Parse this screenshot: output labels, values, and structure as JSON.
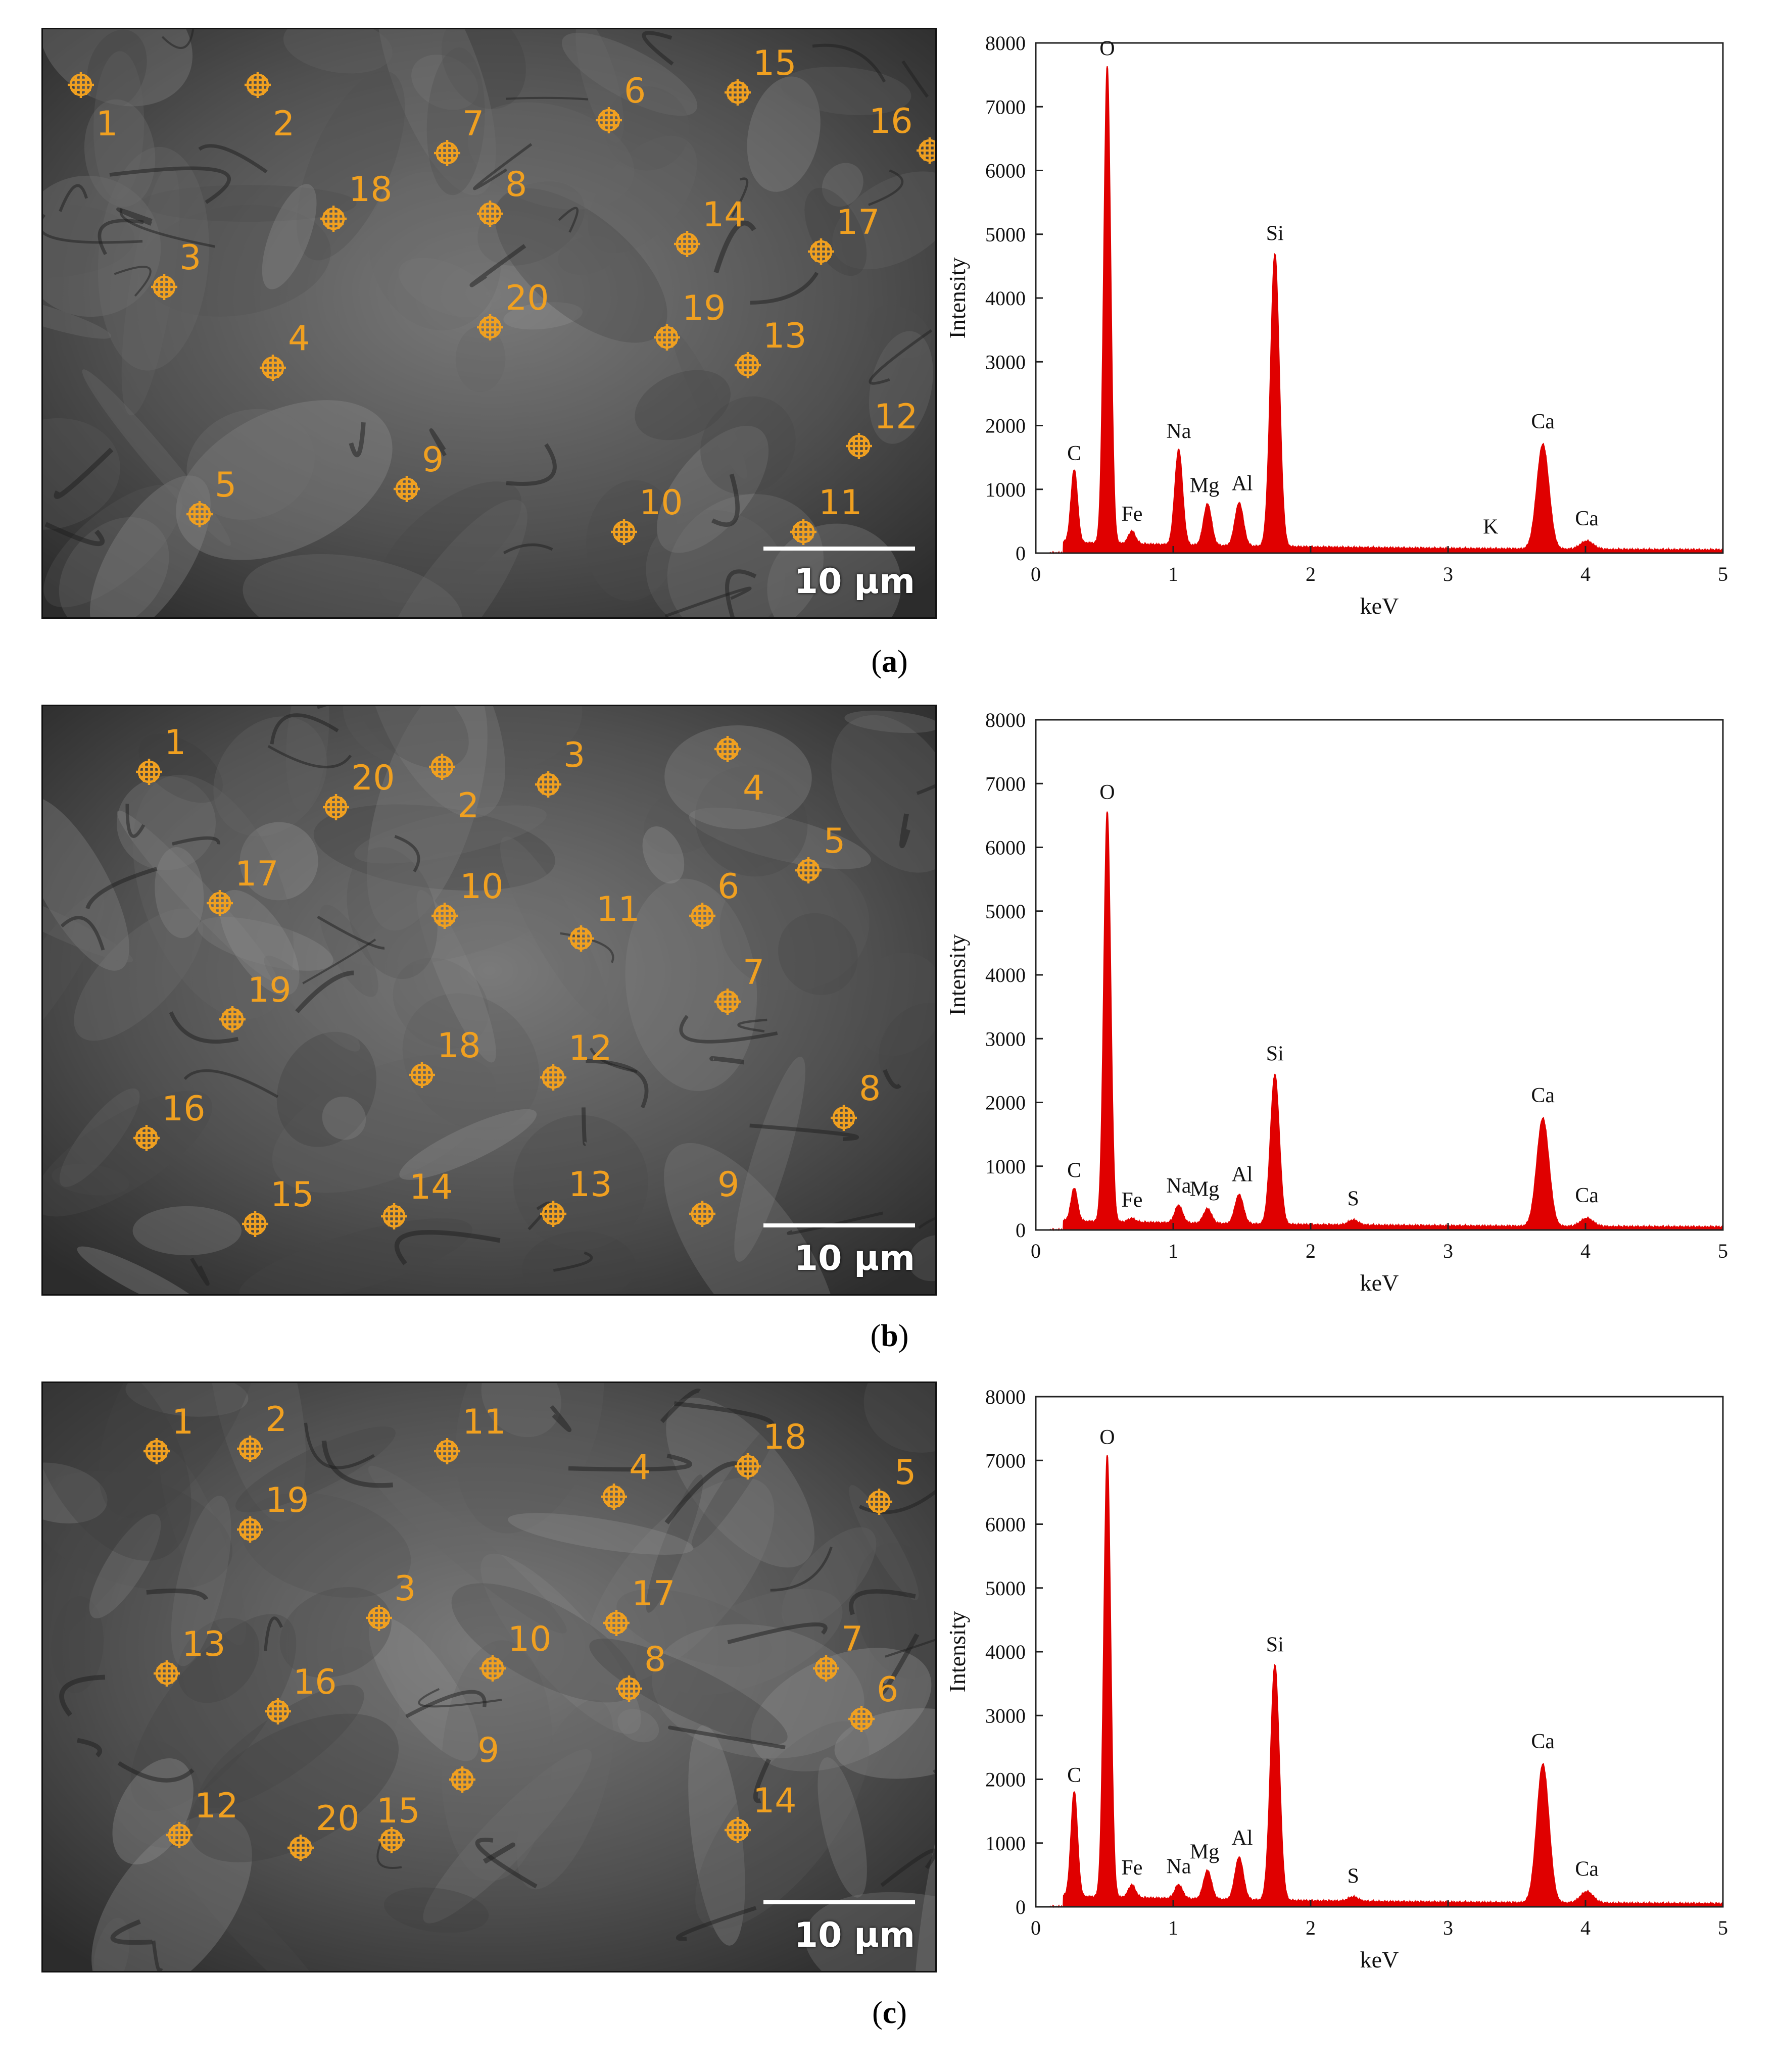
{
  "panels": [
    {
      "id": "a",
      "caption": "a",
      "scale_label": "10 μm",
      "markers": [
        "1",
        "2",
        "3",
        "4",
        "5",
        "6",
        "7",
        "8",
        "9",
        "10",
        "11",
        "12",
        "13",
        "14",
        "15",
        "16",
        "17",
        "18",
        "19",
        "20"
      ]
    },
    {
      "id": "b",
      "caption": "b",
      "scale_label": "10 μm",
      "markers": [
        "1",
        "2",
        "3",
        "4",
        "5",
        "6",
        "7",
        "8",
        "9",
        "10",
        "11",
        "12",
        "13",
        "14",
        "15",
        "16",
        "17",
        "18",
        "19",
        "20"
      ]
    },
    {
      "id": "c",
      "caption": "c",
      "scale_label": "10 μm",
      "markers": [
        "1",
        "2",
        "3",
        "4",
        "5",
        "6",
        "7",
        "8",
        "9",
        "10",
        "11",
        "12",
        "13",
        "14",
        "15",
        "16",
        "17",
        "18",
        "19",
        "20"
      ]
    }
  ],
  "chart_data": [
    {
      "type": "line",
      "xlabel": "keV",
      "ylabel": "Intensity",
      "xlim": [
        0,
        5
      ],
      "ylim": [
        0,
        8000
      ],
      "xticks": [
        0,
        1,
        2,
        3,
        4,
        5
      ],
      "yticks": [
        0,
        1000,
        2000,
        3000,
        4000,
        5000,
        6000,
        7000,
        8000
      ],
      "grid": false,
      "fill_color": "#e00000",
      "baseline": 150,
      "series": [
        {
          "peaks": [
            {
              "label": "C",
              "x": 0.28,
              "y": 1250
            },
            {
              "label": "O",
              "x": 0.52,
              "y": 7600
            },
            {
              "label": "Fe",
              "x": 0.7,
              "y": 300
            },
            {
              "label": "Na",
              "x": 1.04,
              "y": 1600
            },
            {
              "label": "Mg",
              "x": 1.25,
              "y": 750
            },
            {
              "label": "Al",
              "x": 1.48,
              "y": 780
            },
            {
              "label": "Si",
              "x": 1.74,
              "y": 4700
            },
            {
              "label": "K",
              "x": 3.31,
              "y": 100
            },
            {
              "label": "Ca",
              "x": 3.69,
              "y": 1750
            },
            {
              "label": "Ca",
              "x": 4.01,
              "y": 230
            }
          ]
        }
      ]
    },
    {
      "type": "line",
      "xlabel": "keV",
      "ylabel": "Intensity",
      "xlim": [
        0,
        5
      ],
      "ylim": [
        0,
        8000
      ],
      "xticks": [
        0,
        1,
        2,
        3,
        4,
        5
      ],
      "yticks": [
        0,
        1000,
        2000,
        3000,
        4000,
        5000,
        6000,
        7000,
        8000
      ],
      "grid": false,
      "fill_color": "#e00000",
      "baseline": 120,
      "series": [
        {
          "peaks": [
            {
              "label": "C",
              "x": 0.28,
              "y": 620
            },
            {
              "label": "O",
              "x": 0.52,
              "y": 6550
            },
            {
              "label": "Fe",
              "x": 0.7,
              "y": 160
            },
            {
              "label": "Na",
              "x": 1.04,
              "y": 380
            },
            {
              "label": "Mg",
              "x": 1.25,
              "y": 330
            },
            {
              "label": "Al",
              "x": 1.48,
              "y": 560
            },
            {
              "label": "Si",
              "x": 1.74,
              "y": 2450
            },
            {
              "label": "S",
              "x": 2.31,
              "y": 180
            },
            {
              "label": "Ca",
              "x": 3.69,
              "y": 1800
            },
            {
              "label": "Ca",
              "x": 4.01,
              "y": 230
            }
          ]
        }
      ]
    },
    {
      "type": "line",
      "xlabel": "keV",
      "ylabel": "Intensity",
      "xlim": [
        0,
        5
      ],
      "ylim": [
        0,
        8000
      ],
      "xticks": [
        0,
        1,
        2,
        3,
        4,
        5
      ],
      "yticks": [
        0,
        1000,
        2000,
        3000,
        4000,
        5000,
        6000,
        7000,
        8000
      ],
      "grid": false,
      "fill_color": "#e00000",
      "baseline": 150,
      "series": [
        {
          "peaks": [
            {
              "label": "C",
              "x": 0.28,
              "y": 1750
            },
            {
              "label": "O",
              "x": 0.52,
              "y": 7050
            },
            {
              "label": "Fe",
              "x": 0.7,
              "y": 300
            },
            {
              "label": "Na",
              "x": 1.04,
              "y": 320
            },
            {
              "label": "Mg",
              "x": 1.25,
              "y": 550
            },
            {
              "label": "Al",
              "x": 1.48,
              "y": 770
            },
            {
              "label": "Si",
              "x": 1.74,
              "y": 3800
            },
            {
              "label": "S",
              "x": 2.31,
              "y": 170
            },
            {
              "label": "Ca",
              "x": 3.69,
              "y": 2280
            },
            {
              "label": "Ca",
              "x": 4.01,
              "y": 280
            }
          ]
        }
      ]
    }
  ]
}
